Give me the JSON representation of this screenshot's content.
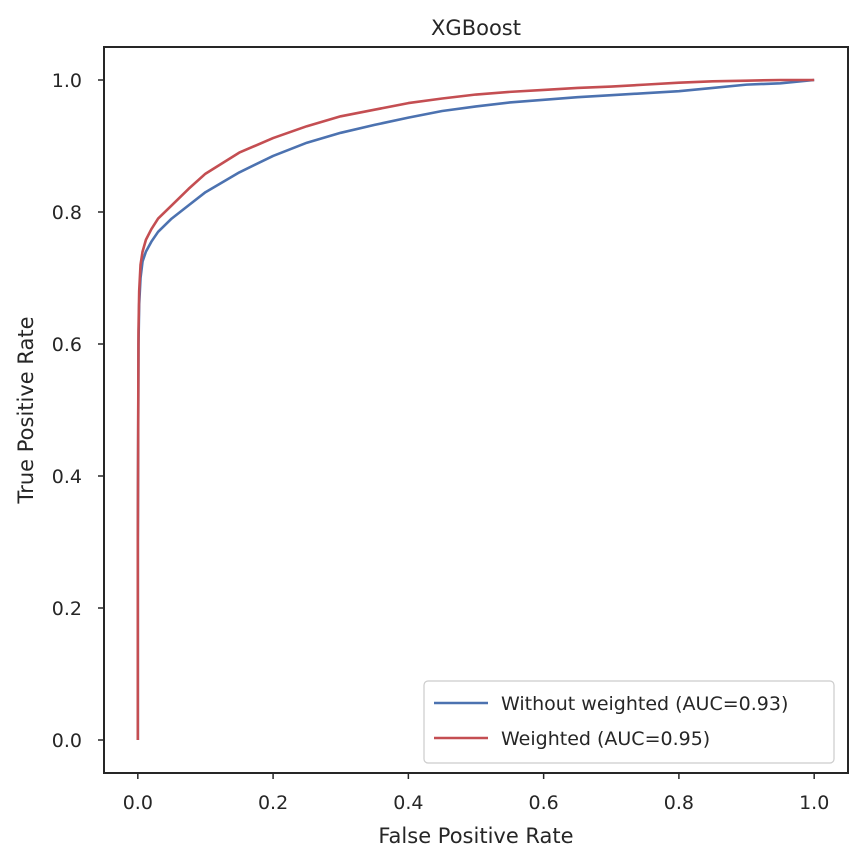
{
  "chart_data": {
    "type": "line",
    "title": "XGBoost",
    "xlabel": "False Positive Rate",
    "ylabel": "True Positive Rate",
    "xlim": [
      -0.05,
      1.05
    ],
    "ylim": [
      -0.05,
      1.05
    ],
    "xticks": [
      0.0,
      0.2,
      0.4,
      0.6,
      0.8,
      1.0
    ],
    "yticks": [
      0.0,
      0.2,
      0.4,
      0.6,
      0.8,
      1.0
    ],
    "xtick_labels": [
      "0.0",
      "0.2",
      "0.4",
      "0.6",
      "0.8",
      "1.0"
    ],
    "ytick_labels": [
      "0.0",
      "0.2",
      "0.4",
      "0.6",
      "0.8",
      "1.0"
    ],
    "grid": false,
    "legend_position": "lower-right",
    "series": [
      {
        "name": "Without weighted (AUC=0.93)",
        "color": "#4c72b0",
        "x": [
          0.0,
          0.0,
          0.001,
          0.002,
          0.004,
          0.007,
          0.012,
          0.02,
          0.03,
          0.05,
          0.075,
          0.1,
          0.15,
          0.2,
          0.25,
          0.3,
          0.35,
          0.4,
          0.45,
          0.5,
          0.55,
          0.6,
          0.65,
          0.7,
          0.75,
          0.8,
          0.85,
          0.9,
          0.95,
          1.0
        ],
        "y": [
          0.0,
          0.3,
          0.6,
          0.66,
          0.7,
          0.725,
          0.74,
          0.755,
          0.77,
          0.79,
          0.81,
          0.83,
          0.86,
          0.885,
          0.905,
          0.92,
          0.932,
          0.943,
          0.953,
          0.96,
          0.966,
          0.97,
          0.974,
          0.977,
          0.98,
          0.983,
          0.988,
          0.993,
          0.995,
          1.0
        ]
      },
      {
        "name": "Weighted (AUC=0.95)",
        "color": "#c44e52",
        "x": [
          0.0,
          0.0,
          0.001,
          0.002,
          0.004,
          0.007,
          0.012,
          0.02,
          0.03,
          0.05,
          0.075,
          0.1,
          0.15,
          0.2,
          0.25,
          0.3,
          0.35,
          0.4,
          0.45,
          0.5,
          0.55,
          0.6,
          0.65,
          0.7,
          0.75,
          0.8,
          0.85,
          0.9,
          0.95,
          1.0
        ],
        "y": [
          0.0,
          0.3,
          0.62,
          0.68,
          0.72,
          0.74,
          0.758,
          0.774,
          0.79,
          0.81,
          0.835,
          0.858,
          0.89,
          0.912,
          0.93,
          0.945,
          0.955,
          0.965,
          0.972,
          0.978,
          0.982,
          0.985,
          0.988,
          0.99,
          0.993,
          0.996,
          0.998,
          0.999,
          1.0,
          1.0
        ]
      }
    ]
  }
}
